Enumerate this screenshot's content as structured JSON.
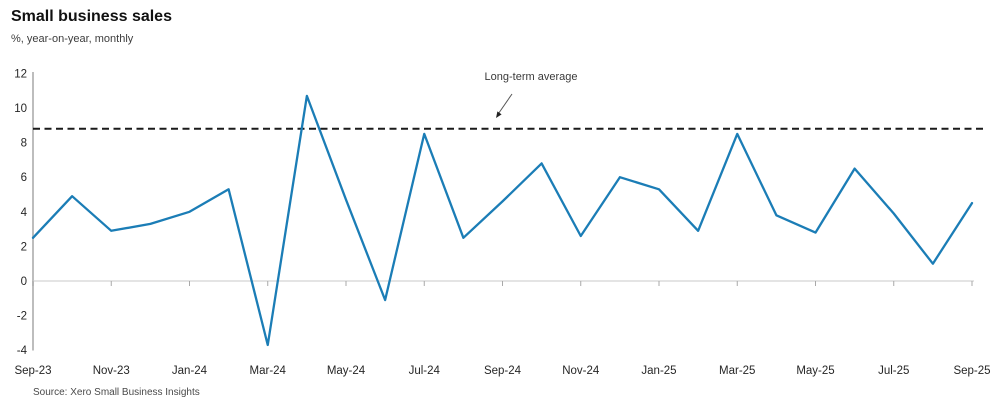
{
  "header": {
    "title": "Small business sales",
    "subtitle": "%, year-on-year, monthly"
  },
  "annotation": {
    "label": "Long-term average"
  },
  "footer": {
    "source": "Source: Xero Small Business Insights"
  },
  "colors": {
    "line": "#1b7db6",
    "average_line": "#1a1a1a",
    "axis": "#bdbdbd",
    "tick": "#a9a9a9",
    "text": "#262626"
  },
  "chart_data": {
    "type": "line",
    "title": "Small business sales",
    "ylabel": "%, year-on-year, monthly",
    "x": [
      "Sep-23",
      "Oct-23",
      "Nov-23",
      "Dec-23",
      "Jan-24",
      "Feb-24",
      "Mar-24",
      "Apr-24",
      "May-24",
      "Jun-24",
      "Jul-24",
      "Aug-24",
      "Sep-24",
      "Oct-24",
      "Nov-24",
      "Dec-24",
      "Jan-25",
      "Feb-25",
      "Mar-25",
      "Apr-25",
      "May-25",
      "Jun-25",
      "Jul-25",
      "Aug-25",
      "Sep-25"
    ],
    "values": [
      2.5,
      4.9,
      2.9,
      3.3,
      4.0,
      5.3,
      -3.7,
      10.7,
      4.7,
      -1.1,
      8.5,
      2.5,
      4.6,
      6.8,
      2.6,
      6.0,
      5.3,
      2.9,
      8.5,
      3.8,
      2.8,
      6.5,
      3.9,
      1.0,
      4.5
    ],
    "x_tick_labels": [
      "Sep-23",
      "Nov-23",
      "Jan-24",
      "Mar-24",
      "May-24",
      "Jul-24",
      "Sep-24",
      "Nov-24",
      "Jan-25",
      "Mar-25",
      "May-25",
      "Jul-25",
      "Sep-25"
    ],
    "y_ticks": [
      12,
      10,
      8,
      6,
      4,
      2,
      0,
      -2,
      -4
    ],
    "ylim": [
      -4,
      12
    ],
    "long_term_average": 8.8,
    "grid": "zero-line-only",
    "legend": "none"
  }
}
